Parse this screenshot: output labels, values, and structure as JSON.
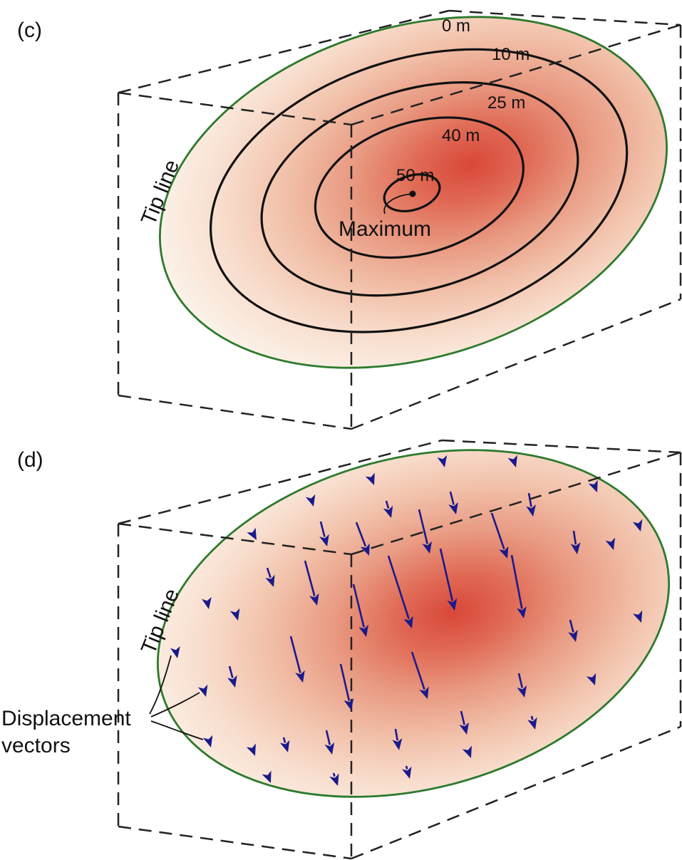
{
  "panel_c": {
    "label": "(c)",
    "tip_line_label": "Tip line",
    "contours": [
      "0 m",
      "10 m",
      "25 m",
      "40 m",
      "50 m"
    ],
    "maximum_label": "Maximum"
  },
  "panel_d": {
    "label": "(d)",
    "tip_line_label": "Tip line",
    "vectors_label_line1": "Displacement",
    "vectors_label_line2": "vectors"
  },
  "colors": {
    "tip_line": "#2d7a2d",
    "contour": "#111111",
    "vector": "#1a1a8c",
    "slip_max": "#d9473a",
    "slip_min": "#fbf0e6"
  }
}
